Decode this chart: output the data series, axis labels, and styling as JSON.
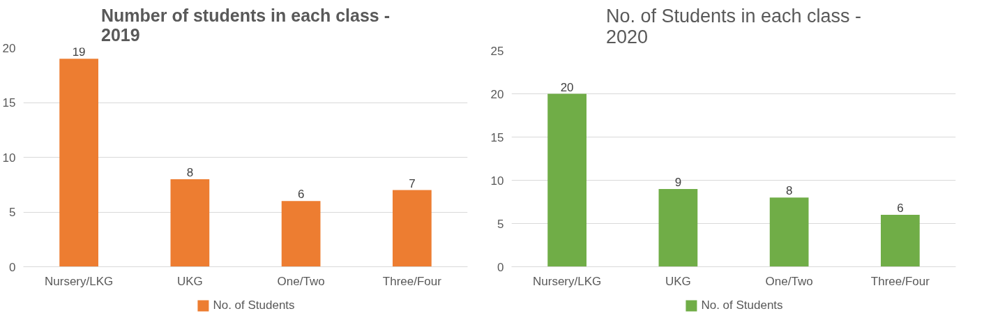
{
  "chart_data": [
    {
      "type": "bar",
      "title": "Number of students in each class -\n2019",
      "categories": [
        "Nursery/LKG",
        "UKG",
        "One/Two",
        "Three/Four"
      ],
      "series": [
        {
          "name": "No. of Students",
          "color": "#ed7d31",
          "values": [
            19,
            8,
            6,
            7
          ]
        }
      ],
      "ylim": [
        0,
        20
      ],
      "yticks": [
        0,
        5,
        10,
        15,
        20
      ],
      "grid": "y",
      "legend": "bottom",
      "data_labels": true
    },
    {
      "type": "bar",
      "title": "No. of Students in each class -\n2020",
      "categories": [
        "Nursery/LKG",
        "UKG",
        "One/Two",
        "Three/Four"
      ],
      "series": [
        {
          "name": "No. of Students",
          "color": "#70ad47",
          "values": [
            20,
            9,
            8,
            6
          ]
        }
      ],
      "ylim": [
        0,
        25
      ],
      "yticks": [
        0,
        5,
        10,
        15,
        20,
        25
      ],
      "grid": "y",
      "legend": "bottom",
      "data_labels": true
    }
  ]
}
